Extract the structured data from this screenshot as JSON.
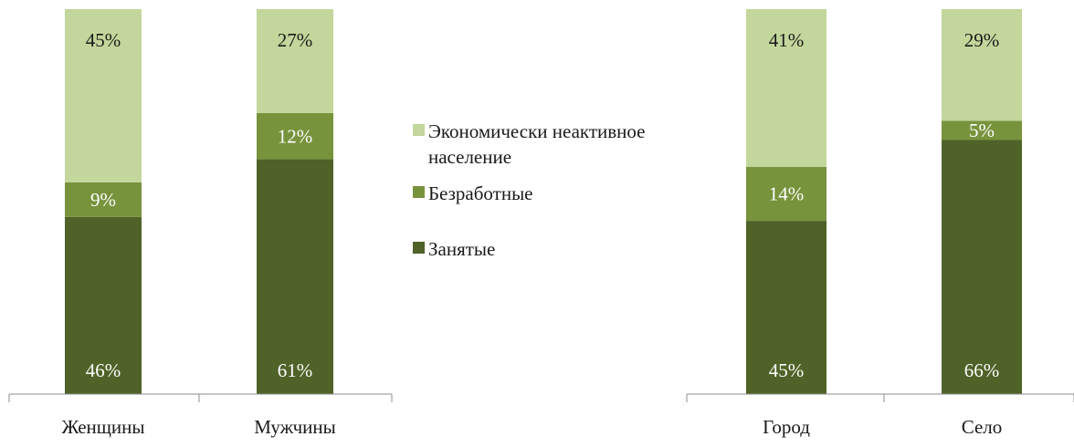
{
  "colors": {
    "employed": "#4f6228",
    "unemployed": "#77933c",
    "inactive": "#c3d69b",
    "axis": "#8c8c8c",
    "text_dark": "#1a1a1a",
    "text_light": "#ffffff"
  },
  "legend": {
    "placement": "center",
    "items": [
      {
        "key": "inactive",
        "label": "Экономически неактивное население"
      },
      {
        "key": "unemployed",
        "label": "Безработные"
      },
      {
        "key": "employed",
        "label": "Занятые"
      }
    ]
  },
  "chart_data": [
    {
      "type": "bar",
      "stacked": true,
      "normalized": true,
      "categories": [
        "Женщины",
        "Мужчины"
      ],
      "series": [
        {
          "key": "employed",
          "name": "Занятые",
          "values": [
            46,
            61
          ],
          "labels": [
            "46%",
            "61%"
          ]
        },
        {
          "key": "unemployed",
          "name": "Безработные",
          "values": [
            9,
            12
          ],
          "labels": [
            "9%",
            "12%"
          ]
        },
        {
          "key": "inactive",
          "name": "Экономически неактивное население",
          "values": [
            45,
            27
          ],
          "labels": [
            "45%",
            "27%"
          ]
        }
      ],
      "ylim": [
        0,
        100
      ],
      "grid": false
    },
    {
      "type": "bar",
      "stacked": true,
      "normalized": true,
      "categories": [
        "Город",
        "Село"
      ],
      "series": [
        {
          "key": "employed",
          "name": "Занятые",
          "values": [
            45,
            66
          ],
          "labels": [
            "45%",
            "66%"
          ]
        },
        {
          "key": "unemployed",
          "name": "Безработные",
          "values": [
            14,
            5
          ],
          "labels": [
            "14%",
            "5%"
          ]
        },
        {
          "key": "inactive",
          "name": "Экономически неактивное население",
          "values": [
            41,
            29
          ],
          "labels": [
            "41%",
            "29%"
          ]
        }
      ],
      "ylim": [
        0,
        100
      ],
      "grid": false
    }
  ]
}
